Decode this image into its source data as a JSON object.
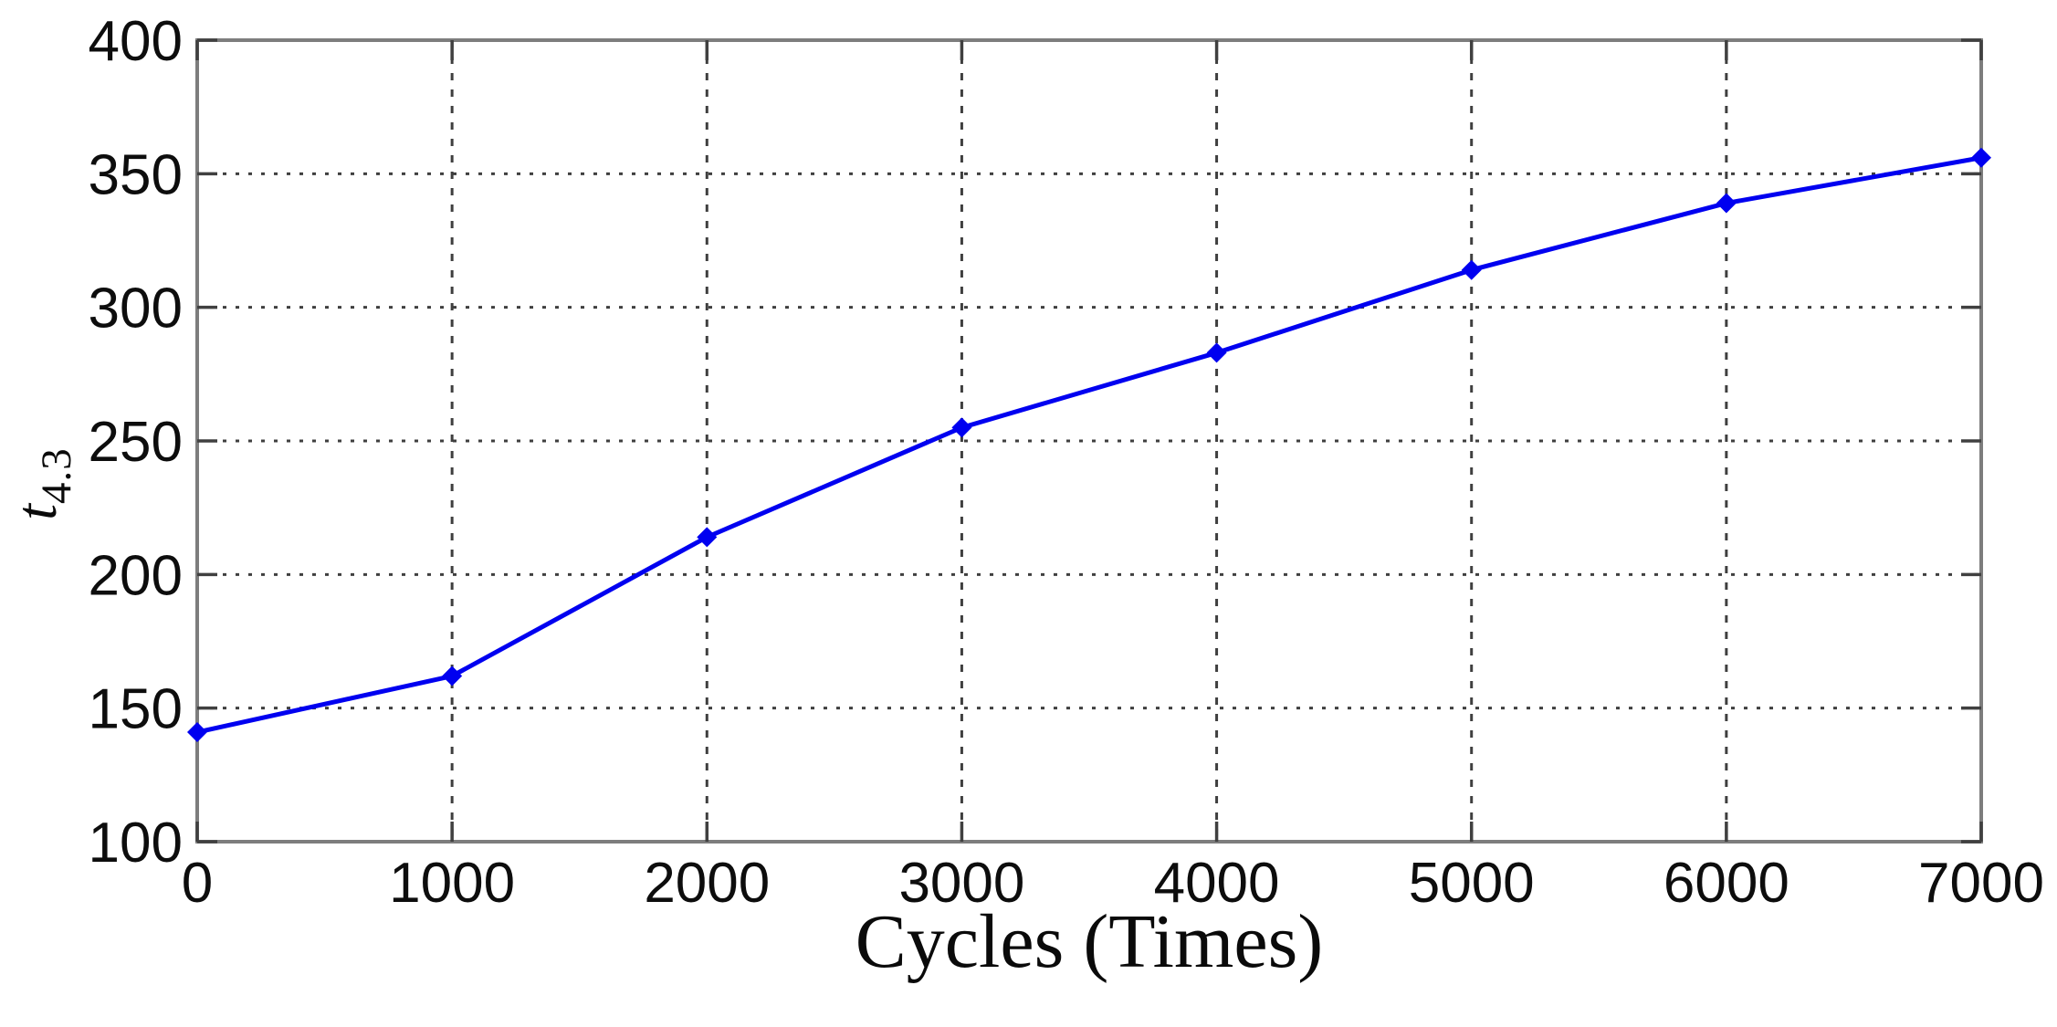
{
  "figure": {
    "xlabel": "Cycles (Times)",
    "ylabel_main": "t",
    "ylabel_sub": "4.3"
  },
  "chart_data": {
    "type": "line",
    "title": "",
    "xlabel": "Cycles (Times)",
    "ylabel": "t_4.3",
    "xlim": [
      0,
      7000
    ],
    "ylim": [
      100,
      400
    ],
    "x_ticks": [
      "0",
      "1000",
      "2000",
      "3000",
      "4000",
      "5000",
      "6000",
      "7000"
    ],
    "y_ticks": [
      "100",
      "150",
      "200",
      "250",
      "300",
      "350",
      "400"
    ],
    "grid": "dotted",
    "legend": "none",
    "series": [
      {
        "name": "t4.3",
        "x": [
          0,
          1000,
          2000,
          3000,
          4000,
          5000,
          6000,
          7000
        ],
        "values": [
          141,
          162,
          214,
          255,
          283,
          314,
          339,
          356
        ],
        "marker": "diamond"
      }
    ],
    "colors": {
      "line": "#0000f0",
      "axis_box": "#7d7d7d",
      "tick_mark": "#404040",
      "grid_line": "#3f3f3f",
      "tick_text": "#0d0d0d"
    }
  }
}
